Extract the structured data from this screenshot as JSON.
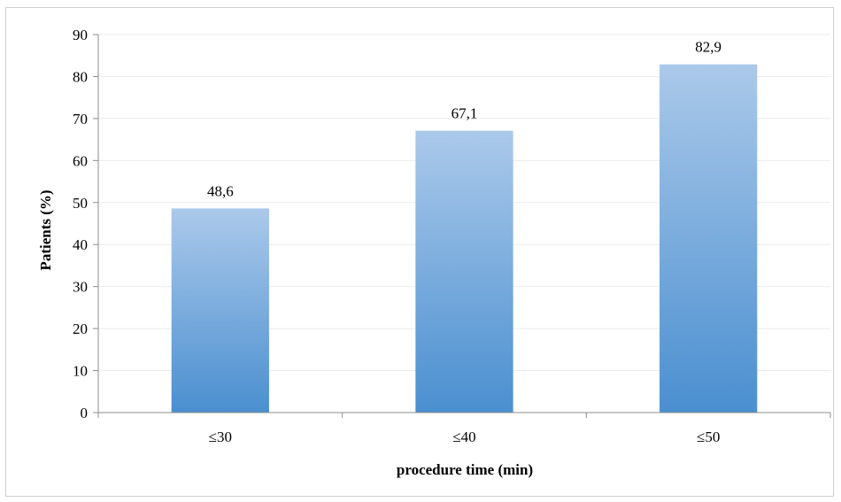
{
  "chart_data": {
    "type": "bar",
    "categories": [
      "≤30",
      "≤40",
      "≤50"
    ],
    "values": [
      48.6,
      67.1,
      82.9
    ],
    "value_labels": [
      "48,6",
      "67,1",
      "82,9"
    ],
    "title": "",
    "xlabel": "procedure time (min)",
    "ylabel": "Patients (%)",
    "ylim": [
      0,
      90
    ],
    "y_ticks": [
      0,
      10,
      20,
      30,
      40,
      50,
      60,
      70,
      80,
      90
    ],
    "grid": true,
    "legend": "none",
    "colors": {
      "bar_top": "#abc9ea",
      "bar_bottom": "#4a8fd0",
      "gridline": "#ebebeb",
      "axis": "#8c8c8c"
    }
  }
}
